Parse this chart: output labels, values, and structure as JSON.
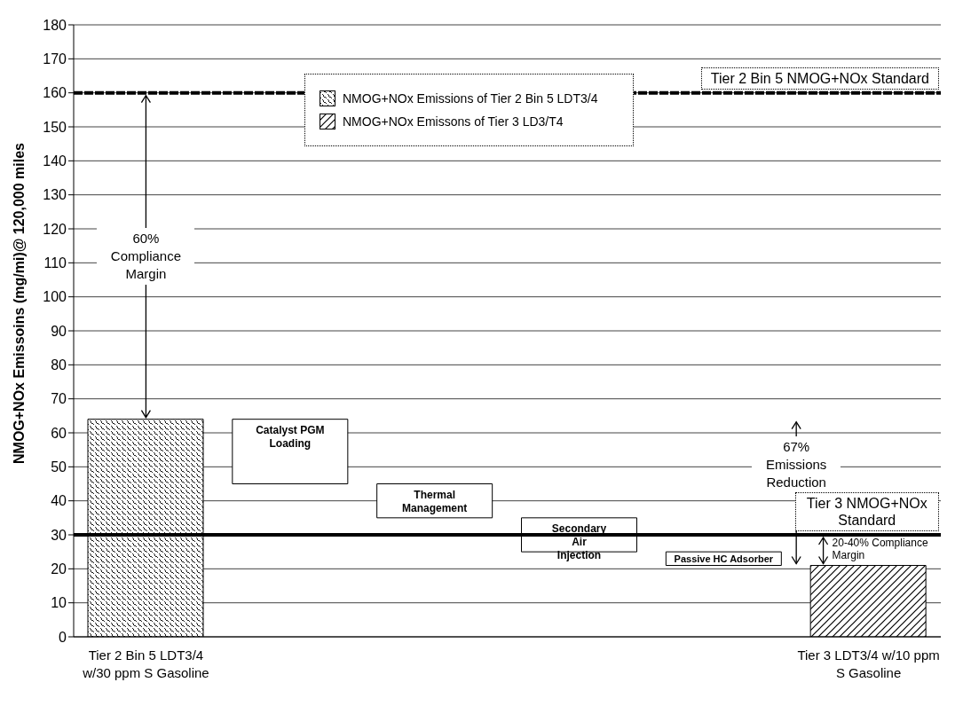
{
  "chart_data": {
    "type": "bar",
    "ylabel": "NMOG+NOx Emissoins (mg/mi)@ 120,000 miles",
    "categories": [
      "Tier 2 Bin 5 LDT3/4 w/30 ppm S Gasoline",
      "Catalyst PGM Loading",
      "Thermal Management",
      "Secondary Air Injection",
      "Passive HC Adsorber",
      "Tier 3 LDT3/4 w/10 ppm S Gasoline"
    ],
    "series": [
      {
        "name": "NMOG+NOx Emissions of Tier 2 Bin 5 LDT3/4",
        "color": "#000000",
        "values": [
          64,
          null,
          null,
          null,
          null,
          null
        ]
      },
      {
        "name": "NMOG+NOx Emissons of Tier 3 LD3/T4",
        "color": "#000000",
        "values": [
          null,
          null,
          null,
          null,
          null,
          21
        ]
      },
      {
        "color": "#ffffff",
        "values": [
          null,
          19,
          10,
          10,
          4,
          null
        ],
        "base": [
          null,
          45,
          35,
          25,
          21,
          null
        ]
      }
    ],
    "ylim": [
      0,
      180
    ],
    "yticks": [
      0,
      10,
      20,
      30,
      40,
      50,
      60,
      70,
      80,
      90,
      100,
      110,
      120,
      130,
      140,
      150,
      160,
      170,
      180
    ],
    "grid": "y",
    "legend": "top",
    "ref_lines": [
      {
        "axis": "y",
        "value": 160,
        "label": "Tier 2 Bin 5 NMOG+NOx Standard",
        "color": "#000000",
        "line_style": "dashed"
      },
      {
        "axis": "y",
        "value": 30,
        "label": "Tier 3 NMOG+NOx Standard",
        "color": "#000000",
        "line_style": "solid"
      }
    ],
    "annotations": [
      "60% Compliance Margin",
      "67% Emissions Reduction",
      "20-40% Compliance Margin"
    ]
  }
}
